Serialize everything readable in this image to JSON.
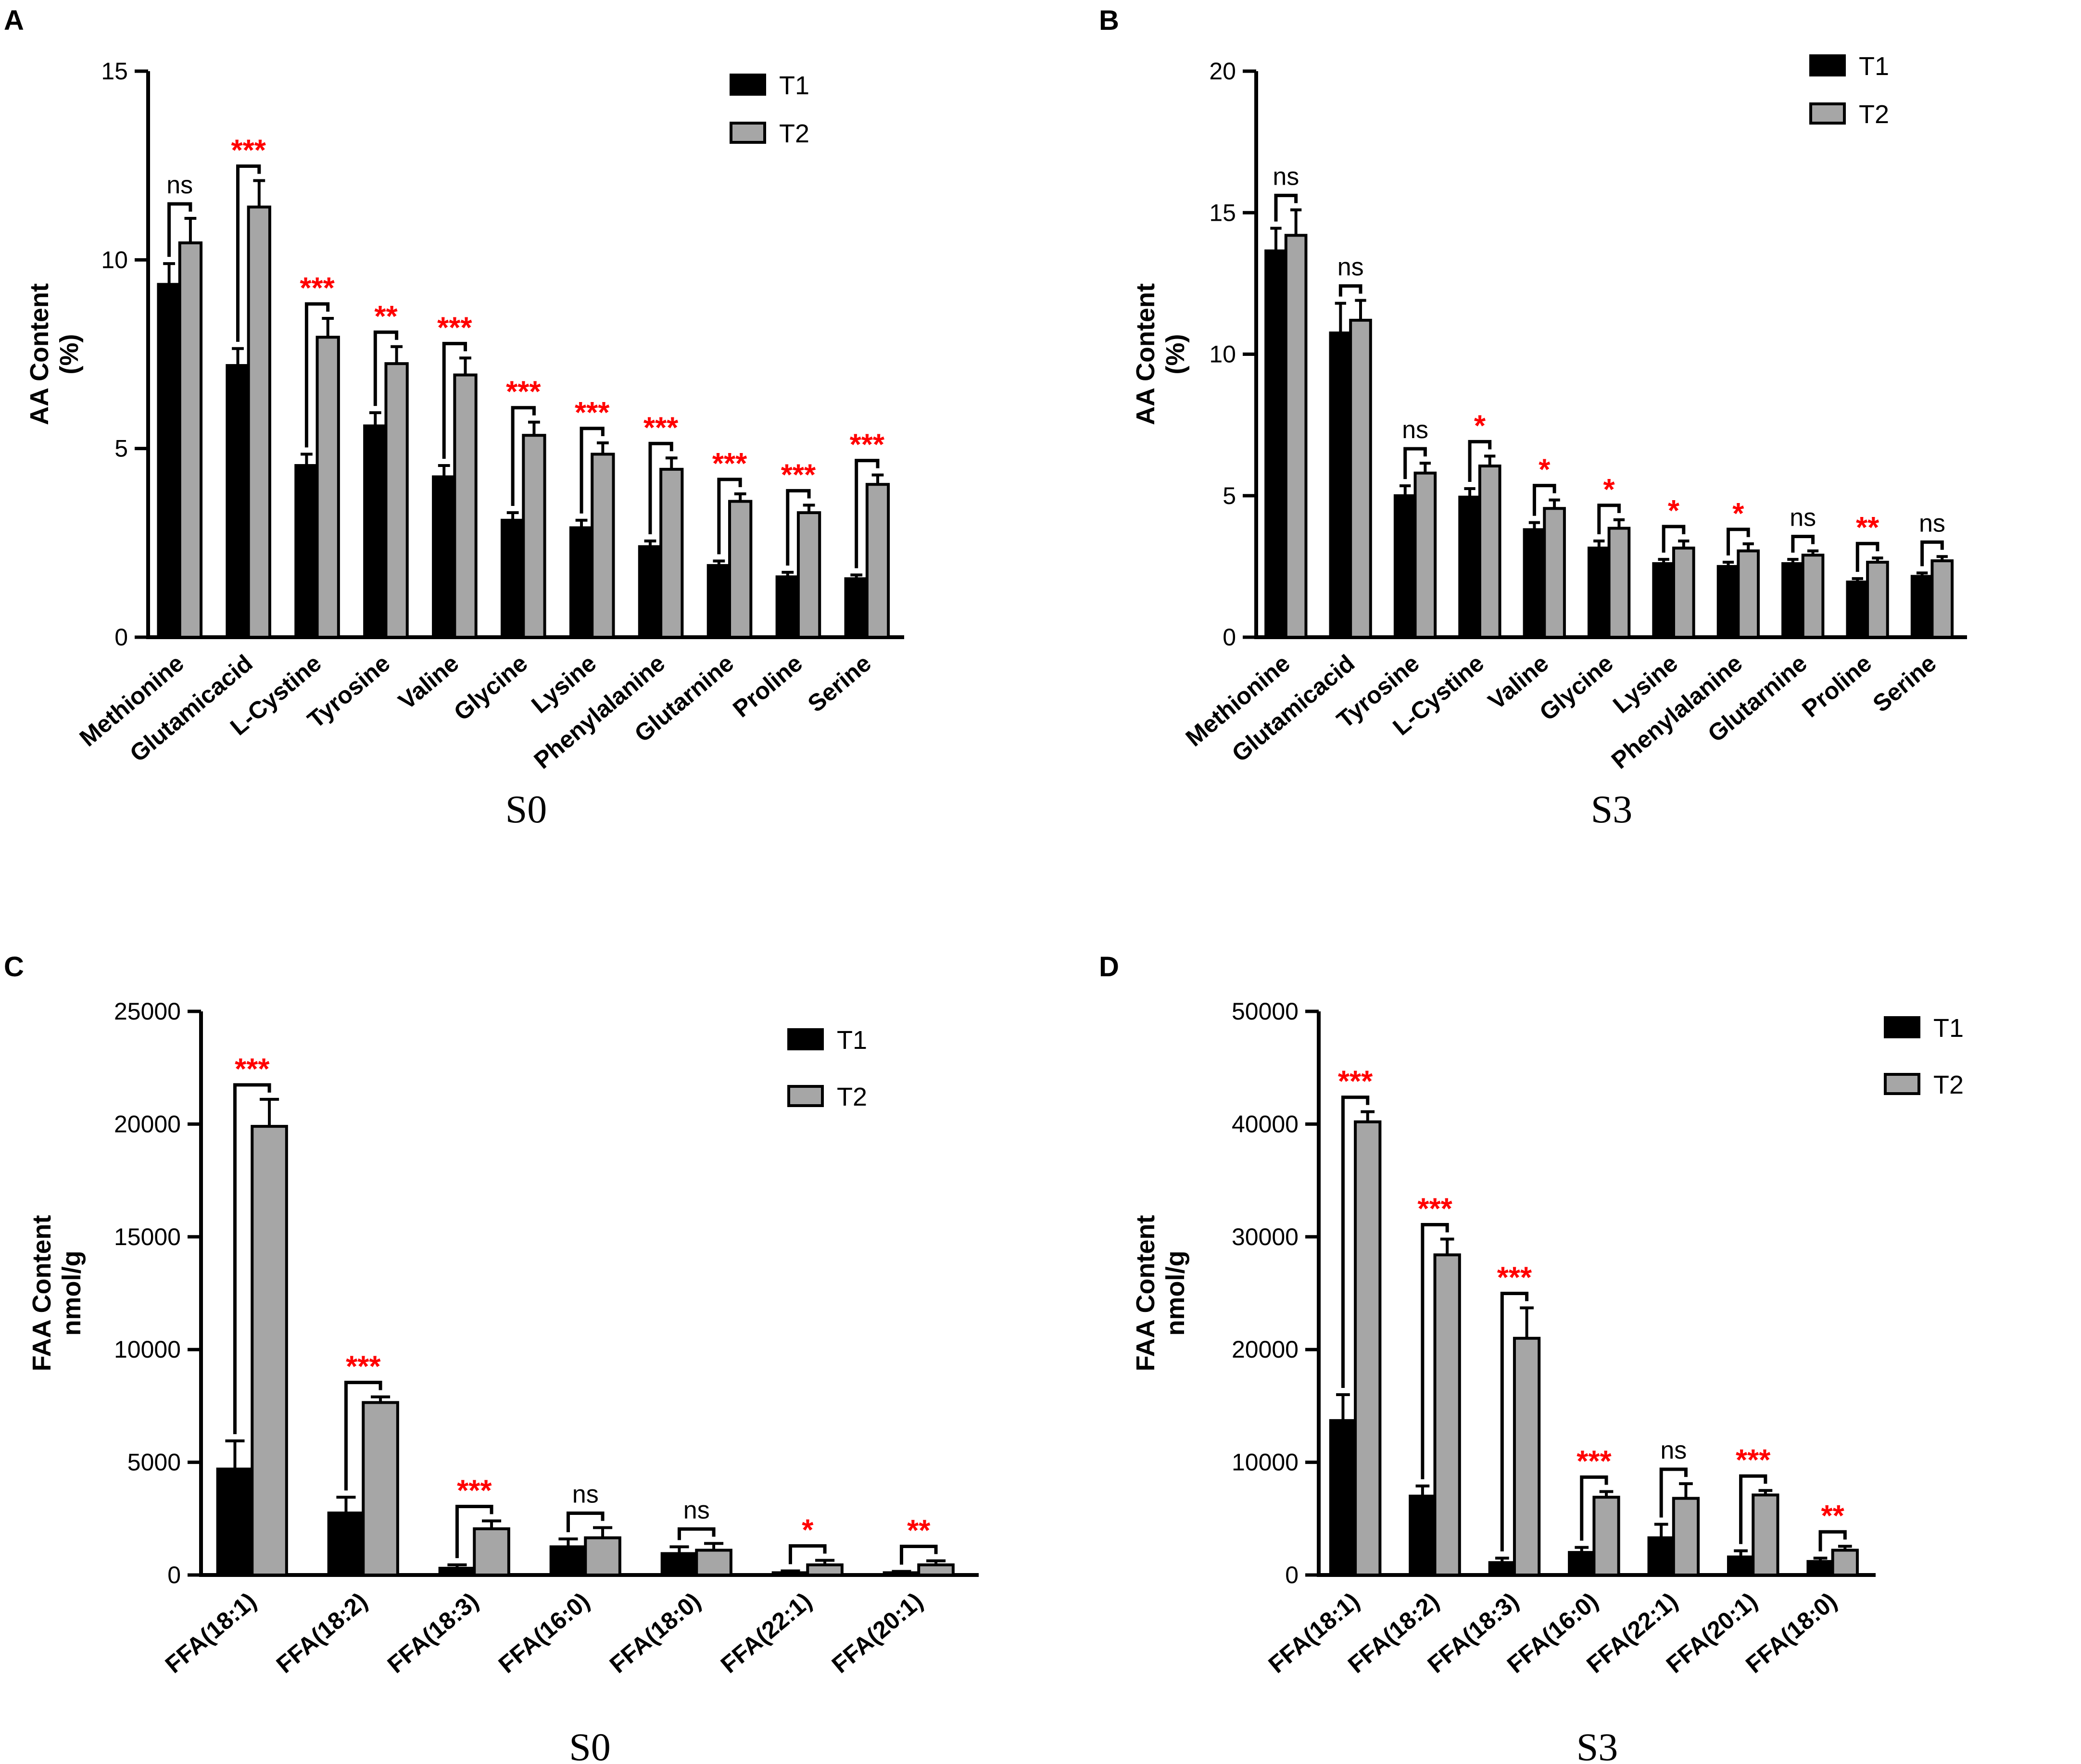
{
  "chart_data": [
    {
      "panel": "A",
      "type": "bar",
      "title": "S0",
      "xlabel": "S0",
      "ylabel": "AA Content\n(%)",
      "ylim": [
        0,
        15
      ],
      "yticks": [
        0,
        5,
        10,
        15
      ],
      "legend": {
        "position": "top-right",
        "entries": [
          "T1",
          "T2"
        ]
      },
      "categories": [
        "Methionine",
        "Glutamicacid",
        "L-Cystine",
        "Tyrosine",
        "Valine",
        "Glycine",
        "Lysine",
        "Phenylalanine",
        "Glutarnine",
        "Proline",
        "Serine"
      ],
      "series": [
        {
          "name": "T1",
          "color": "#000000",
          "values": [
            9.35,
            7.2,
            4.55,
            5.6,
            4.25,
            3.1,
            2.9,
            2.4,
            1.9,
            1.6,
            1.55
          ],
          "errors": [
            0.55,
            0.45,
            0.3,
            0.35,
            0.3,
            0.2,
            0.2,
            0.15,
            0.12,
            0.12,
            0.1
          ]
        },
        {
          "name": "T2",
          "color": "#a6a6a6",
          "values": [
            10.45,
            11.4,
            7.95,
            7.25,
            6.95,
            5.35,
            4.85,
            4.45,
            3.6,
            3.3,
            4.05
          ],
          "errors": [
            0.65,
            0.7,
            0.5,
            0.45,
            0.45,
            0.35,
            0.3,
            0.3,
            0.2,
            0.2,
            0.25
          ]
        }
      ],
      "significance": [
        "ns",
        "***",
        "***",
        "**",
        "***",
        "***",
        "***",
        "***",
        "***",
        "***",
        "***"
      ]
    },
    {
      "panel": "B",
      "type": "bar",
      "title": "S3",
      "xlabel": "S3",
      "ylabel": "AA Content\n(%)",
      "ylim": [
        0,
        20
      ],
      "yticks": [
        0,
        5,
        10,
        15,
        20
      ],
      "legend": {
        "position": "top-right",
        "entries": [
          "T1",
          "T2"
        ]
      },
      "categories": [
        "Methionine",
        "Glutamicacid",
        "Tyrosine",
        "L-Cystine",
        "Valine",
        "Glycine",
        "Lysine",
        "Phenylalanine",
        "Glutarnine",
        "Proline",
        "Serine"
      ],
      "series": [
        {
          "name": "T1",
          "color": "#000000",
          "values": [
            13.65,
            10.75,
            5.0,
            4.95,
            3.8,
            3.15,
            2.6,
            2.5,
            2.6,
            1.95,
            2.15
          ],
          "errors": [
            0.8,
            1.05,
            0.35,
            0.3,
            0.25,
            0.25,
            0.15,
            0.15,
            0.15,
            0.12,
            0.12
          ]
        },
        {
          "name": "T2",
          "color": "#a6a6a6",
          "values": [
            14.2,
            11.2,
            5.8,
            6.05,
            4.55,
            3.85,
            3.15,
            3.05,
            2.9,
            2.65,
            2.7
          ],
          "errors": [
            0.9,
            0.7,
            0.35,
            0.35,
            0.3,
            0.3,
            0.25,
            0.25,
            0.15,
            0.15,
            0.15
          ]
        }
      ],
      "significance": [
        "ns",
        "ns",
        "ns",
        "*",
        "*",
        "*",
        "*",
        "*",
        "ns",
        "**",
        "ns"
      ]
    },
    {
      "panel": "C",
      "type": "bar",
      "title": "S0",
      "xlabel": "S0",
      "ylabel": "FAA Content\nnmol/g",
      "ylim": [
        0,
        25000
      ],
      "yticks": [
        0,
        5000,
        10000,
        15000,
        20000,
        25000
      ],
      "legend": {
        "position": "top-right",
        "entries": [
          "T1",
          "T2"
        ]
      },
      "categories": [
        "FFA(18:1)",
        "FFA(18:2)",
        "FFA(18:3)",
        "FFA(16:0)",
        "FFA(18:0)",
        "FFA(22:1)",
        "FFA(20:1)"
      ],
      "series": [
        {
          "name": "T1",
          "color": "#000000",
          "values": [
            4700,
            2750,
            300,
            1250,
            950,
            100,
            100
          ],
          "errors": [
            1250,
            700,
            150,
            350,
            300,
            80,
            60
          ]
        },
        {
          "name": "T2",
          "color": "#a6a6a6",
          "values": [
            19900,
            7650,
            2050,
            1650,
            1100,
            450,
            450
          ],
          "errors": [
            1200,
            250,
            350,
            450,
            300,
            200,
            180
          ]
        }
      ],
      "significance": [
        "***",
        "***",
        "***",
        "ns",
        "ns",
        "*",
        "**"
      ]
    },
    {
      "panel": "D",
      "type": "bar",
      "title": "S3",
      "xlabel": "S3",
      "ylabel": "FAA Content\nnmol/g",
      "ylim": [
        0,
        50000
      ],
      "yticks": [
        0,
        10000,
        20000,
        30000,
        40000,
        50000
      ],
      "legend": {
        "position": "top-right",
        "entries": [
          "T1",
          "T2"
        ]
      },
      "categories": [
        "FFA(18:1)",
        "FFA(18:2)",
        "FFA(18:3)",
        "FFA(16:0)",
        "FFA(22:1)",
        "FFA(20:1)",
        "FFA(18:0)"
      ],
      "series": [
        {
          "name": "T1",
          "color": "#000000",
          "values": [
            13700,
            7000,
            1100,
            2000,
            3300,
            1600,
            1200
          ],
          "errors": [
            2300,
            900,
            400,
            450,
            1200,
            550,
            300
          ]
        },
        {
          "name": "T2",
          "color": "#a6a6a6",
          "values": [
            40200,
            28400,
            21000,
            6900,
            6800,
            7100,
            2200
          ],
          "errors": [
            900,
            1400,
            2700,
            500,
            1300,
            400,
            350
          ]
        }
      ],
      "significance": [
        "***",
        "***",
        "***",
        "***",
        "ns",
        "***",
        "**"
      ]
    }
  ]
}
